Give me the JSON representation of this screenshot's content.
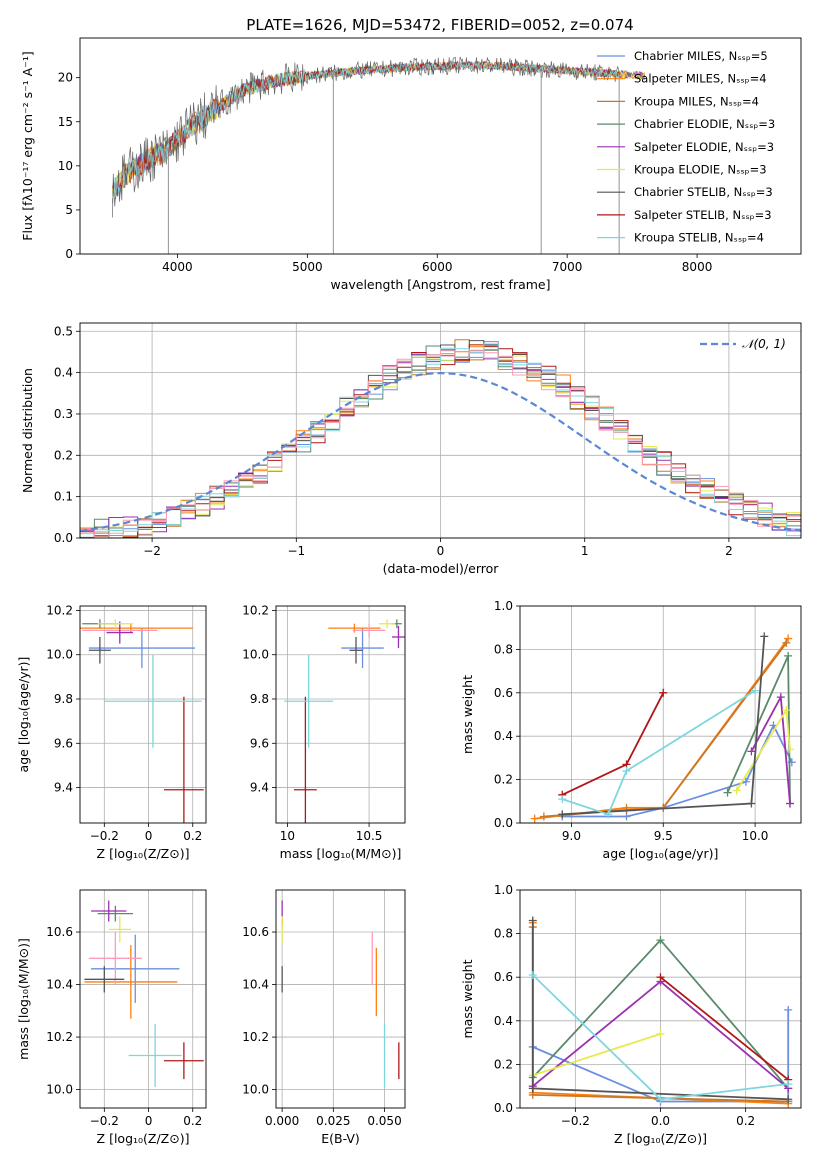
{
  "figure": {
    "title": "PLATE=1626, MJD=53472, FIBERID=0052, z=0.074"
  },
  "legend_series": [
    {
      "label": "Chabrier MILES, N$_{SSP}$=5",
      "color": "#6a8fe0"
    },
    {
      "label": "Salpeter MILES, N$_{SSP}$=4",
      "color": "#ff7f0e"
    },
    {
      "label": "Kroupa MILES, N$_{SSP}$=4",
      "color": "#c87828"
    },
    {
      "label": "Chabrier ELODIE, N$_{SSP}$=3",
      "color": "#5a8a6a"
    },
    {
      "label": "Salpeter ELODIE, N$_{SSP}$=3",
      "color": "#9b30b0"
    },
    {
      "label": "Kroupa ELODIE, N$_{SSP}$=3",
      "color": "#e6ea4a"
    },
    {
      "label": "Chabrier STELIB, N$_{SSP}$=3",
      "color": "#555555"
    },
    {
      "label": "Salpeter STELIB, N$_{SSP}$=3",
      "color": "#b01818"
    },
    {
      "label": "Kroupa STELIB, N$_{SSP}$=4",
      "color": "#7ed6df"
    }
  ],
  "display_legend": [
    "Chabrier MILES, Nₛₛₚ=5",
    "Salpeter MILES, Nₛₛₚ=4",
    "Kroupa MILES, Nₛₛₚ=4",
    "Chabrier ELODIE, Nₛₛₚ=3",
    "Salpeter ELODIE, Nₛₛₚ=3",
    "Kroupa ELODIE, Nₛₛₚ=3",
    "Chabrier STELIB, Nₛₛₚ=3",
    "Salpeter STELIB, Nₛₛₚ=3",
    "Kroupa STELIB, Nₛₛₚ=4"
  ],
  "chart_data": [
    {
      "id": "spectrum",
      "type": "line",
      "xlabel": "wavelength [Angstrom, rest frame]",
      "ylabel": "Flux [fλ10⁻¹⁷ erg cm⁻² s⁻¹ A⁻¹]",
      "xlim": [
        3250,
        8800
      ],
      "ylim": [
        0,
        24.5
      ],
      "xticks": [
        4000,
        5000,
        6000,
        7000,
        8000
      ],
      "yticks": [
        0,
        5,
        10,
        15,
        20
      ],
      "grid": false,
      "legend_position": "upper-right",
      "continuum": {
        "x": [
          3500,
          3600,
          3700,
          3800,
          3900,
          4000,
          4100,
          4200,
          4300,
          4400,
          4500,
          4600,
          4700,
          4800,
          5000,
          5200,
          5400,
          5600,
          5800,
          6000,
          6200,
          6400,
          6600,
          6800,
          7000,
          7200,
          7400,
          7600
        ],
        "y": [
          7.0,
          9.0,
          10.0,
          11.0,
          11.5,
          13.0,
          14.5,
          15.5,
          16.5,
          17.5,
          18.5,
          19.0,
          19.5,
          19.8,
          20.2,
          20.5,
          20.8,
          21.0,
          21.2,
          21.3,
          21.4,
          21.4,
          21.2,
          21.0,
          20.8,
          20.6,
          20.4,
          20.2
        ]
      },
      "dropouts": [
        {
          "x": 3930,
          "y": 0
        },
        {
          "x": 5200,
          "y": 0
        },
        {
          "x": 6800,
          "y": 0
        },
        {
          "x": 7400,
          "y": 0
        }
      ]
    },
    {
      "id": "residuals",
      "type": "histogram",
      "xlabel": "(data-model)/error",
      "ylabel": "Normed distribution",
      "xlim": [
        -2.5,
        2.5
      ],
      "ylim": [
        0,
        0.52
      ],
      "xticks": [
        -2,
        -1,
        0,
        1,
        2
      ],
      "yticks": [
        0.0,
        0.1,
        0.2,
        0.3,
        0.4,
        0.5
      ],
      "grid": true,
      "reference_curve": {
        "label": "𝒩(0, 1)",
        "mean": 0,
        "sigma": 1,
        "color": "#5b87d6"
      },
      "bin_width": 0.1,
      "peak_value": 0.5
    },
    {
      "id": "age_vs_Z",
      "type": "errorbar",
      "xlabel": "Z [log₁₀(Z/Z⊙)]",
      "ylabel": "age  [log₁₀(age/yr)]",
      "xlim": [
        -0.31,
        0.26
      ],
      "ylim": [
        9.24,
        10.22
      ],
      "xticks": [
        -0.2,
        0.0,
        0.2
      ],
      "yticks": [
        9.4,
        9.6,
        9.8,
        10.0,
        10.2
      ],
      "grid": true,
      "points": [
        {
          "x": -0.03,
          "y": 10.03,
          "xerr": 0.24,
          "yerr": 0.09,
          "color": "#6a8fe0"
        },
        {
          "x": -0.08,
          "y": 10.12,
          "xerr": 0.28,
          "yerr": 0.02,
          "color": "#ff7f0e"
        },
        {
          "x": -0.13,
          "y": 10.11,
          "xerr": 0.17,
          "yerr": 0.03,
          "color": "#ff9ab8"
        },
        {
          "x": -0.22,
          "y": 10.14,
          "xerr": 0.08,
          "yerr": 0.02,
          "color": "#5a8a6a"
        },
        {
          "x": -0.13,
          "y": 10.1,
          "xerr": 0.06,
          "yerr": 0.05,
          "color": "#9b30b0"
        },
        {
          "x": -0.15,
          "y": 10.14,
          "xerr": 0.08,
          "yerr": 0.02,
          "color": "#e6ea4a"
        },
        {
          "x": -0.22,
          "y": 10.02,
          "xerr": 0.05,
          "yerr": 0.06,
          "color": "#555555"
        },
        {
          "x": 0.16,
          "y": 9.39,
          "xerr": 0.09,
          "yerr": 0.42,
          "color": "#b01818"
        },
        {
          "x": 0.02,
          "y": 9.79,
          "xerr": 0.22,
          "yerr": 0.21,
          "color": "#7ed6df"
        }
      ]
    },
    {
      "id": "age_vs_mass",
      "type": "errorbar",
      "xlabel": "mass [log₁₀(M/M⊙)]",
      "ylabel": "",
      "xlim": [
        9.93,
        10.72
      ],
      "ylim": [
        9.24,
        10.22
      ],
      "xticks": [
        10.0,
        10.5
      ],
      "yticks": [
        9.4,
        9.6,
        9.8,
        10.0,
        10.2
      ],
      "grid": true,
      "points": [
        {
          "x": 10.46,
          "y": 10.03,
          "xerr": 0.13,
          "yerr": 0.09,
          "color": "#6a8fe0"
        },
        {
          "x": 10.41,
          "y": 10.12,
          "xerr": 0.16,
          "yerr": 0.02,
          "color": "#ff7f0e"
        },
        {
          "x": 10.5,
          "y": 10.11,
          "xerr": 0.1,
          "yerr": 0.03,
          "color": "#ff9ab8"
        },
        {
          "x": 10.67,
          "y": 10.14,
          "xerr": 0.03,
          "yerr": 0.02,
          "color": "#5a8a6a"
        },
        {
          "x": 10.68,
          "y": 10.08,
          "xerr": 0.04,
          "yerr": 0.05,
          "color": "#9b30b0"
        },
        {
          "x": 10.61,
          "y": 10.14,
          "xerr": 0.05,
          "yerr": 0.02,
          "color": "#e6ea4a"
        },
        {
          "x": 10.42,
          "y": 10.02,
          "xerr": 0.04,
          "yerr": 0.06,
          "color": "#555555"
        },
        {
          "x": 10.11,
          "y": 9.39,
          "xerr": 0.07,
          "yerr": 0.42,
          "color": "#b01818"
        },
        {
          "x": 10.13,
          "y": 9.79,
          "xerr": 0.15,
          "yerr": 0.21,
          "color": "#7ed6df"
        }
      ]
    },
    {
      "id": "weight_vs_age",
      "type": "line",
      "xlabel": "age  [log₁₀(age/yr)]",
      "ylabel": "mass weight",
      "xlim": [
        8.72,
        10.25
      ],
      "ylim": [
        0.0,
        1.0
      ],
      "xticks": [
        9.0,
        9.5,
        10.0
      ],
      "yticks": [
        0.0,
        0.2,
        0.4,
        0.6,
        0.8,
        1.0
      ],
      "grid": true,
      "series": [
        {
          "color": "#6a8fe0",
          "x": [
            8.95,
            9.3,
            9.5,
            9.95,
            10.1,
            10.2
          ],
          "y": [
            0.03,
            0.03,
            0.07,
            0.19,
            0.45,
            0.28
          ]
        },
        {
          "color": "#ff7f0e",
          "x": [
            8.8,
            9.3,
            9.5,
            10.18
          ],
          "y": [
            0.02,
            0.07,
            0.07,
            0.85
          ]
        },
        {
          "color": "#c87828",
          "x": [
            8.85,
            9.3,
            9.5,
            10.17
          ],
          "y": [
            0.03,
            0.06,
            0.07,
            0.83
          ]
        },
        {
          "color": "#5a8a6a",
          "x": [
            9.85,
            10.18,
            10.19
          ],
          "y": [
            0.14,
            0.77,
            0.09
          ]
        },
        {
          "color": "#9b30b0",
          "x": [
            9.98,
            10.14,
            10.19
          ],
          "y": [
            0.33,
            0.58,
            0.09
          ]
        },
        {
          "color": "#e6ea4a",
          "x": [
            9.9,
            10.17,
            10.19
          ],
          "y": [
            0.15,
            0.52,
            0.34
          ]
        },
        {
          "color": "#555555",
          "x": [
            8.95,
            9.98,
            10.05
          ],
          "y": [
            0.04,
            0.09,
            0.86
          ]
        },
        {
          "color": "#b01818",
          "x": [
            8.95,
            9.3,
            9.5
          ],
          "y": [
            0.13,
            0.27,
            0.6
          ]
        },
        {
          "color": "#7ed6df",
          "x": [
            8.95,
            9.2,
            9.3,
            10.0
          ],
          "y": [
            0.11,
            0.04,
            0.24,
            0.61
          ]
        }
      ]
    },
    {
      "id": "mass_vs_Z",
      "type": "errorbar",
      "xlabel": "Z [log₁₀(Z/Z⊙)]",
      "ylabel": "mass [log₁₀(M/M⊙)]",
      "xlim": [
        -0.31,
        0.26
      ],
      "ylim": [
        9.93,
        10.76
      ],
      "xticks": [
        -0.2,
        0.0,
        0.2
      ],
      "yticks": [
        10.0,
        10.2,
        10.4,
        10.6
      ],
      "grid": true,
      "points": [
        {
          "x": -0.06,
          "y": 10.46,
          "xerr": 0.2,
          "yerr": 0.13,
          "color": "#6a8fe0"
        },
        {
          "x": -0.08,
          "y": 10.41,
          "xerr": 0.21,
          "yerr": 0.14,
          "color": "#ff7f0e"
        },
        {
          "x": -0.15,
          "y": 10.5,
          "xerr": 0.12,
          "yerr": 0.1,
          "color": "#ff9ab8"
        },
        {
          "x": -0.15,
          "y": 10.67,
          "xerr": 0.08,
          "yerr": 0.03,
          "color": "#5a8a6a"
        },
        {
          "x": -0.18,
          "y": 10.68,
          "xerr": 0.08,
          "yerr": 0.04,
          "color": "#9b30b0"
        },
        {
          "x": -0.13,
          "y": 10.61,
          "xerr": 0.05,
          "yerr": 0.05,
          "color": "#e6ea4a"
        },
        {
          "x": -0.2,
          "y": 10.42,
          "xerr": 0.09,
          "yerr": 0.05,
          "color": "#555555"
        },
        {
          "x": 0.16,
          "y": 10.11,
          "xerr": 0.09,
          "yerr": 0.07,
          "color": "#b01818"
        },
        {
          "x": 0.03,
          "y": 10.13,
          "xerr": 0.12,
          "yerr": 0.12,
          "color": "#7ed6df"
        }
      ]
    },
    {
      "id": "mass_vs_ebv",
      "type": "errorbar",
      "xlabel": "E(B-V)",
      "ylabel": "",
      "xlim": [
        -0.003,
        0.06
      ],
      "ylim": [
        9.93,
        10.76
      ],
      "xticks": [
        0.0,
        0.025,
        0.05
      ],
      "xticklabels": [
        "0.000",
        "0.025",
        "0.050"
      ],
      "yticks": [
        10.0,
        10.2,
        10.4,
        10.6
      ],
      "grid": true,
      "points": [
        {
          "x": 0.0,
          "y": 10.67,
          "xerr": 0.0,
          "yerr": 0.05,
          "color": "#9b30b0"
        },
        {
          "x": 0.0,
          "y": 10.61,
          "xerr": 0.0,
          "yerr": 0.05,
          "color": "#e6ea4a"
        },
        {
          "x": 0.0,
          "y": 10.42,
          "xerr": 0.0,
          "yerr": 0.05,
          "color": "#555555"
        },
        {
          "x": 0.044,
          "y": 10.5,
          "xerr": 0.0,
          "yerr": 0.1,
          "color": "#ff9ab8"
        },
        {
          "x": 0.046,
          "y": 10.41,
          "xerr": 0.0,
          "yerr": 0.13,
          "color": "#ff7f0e"
        },
        {
          "x": 0.05,
          "y": 10.13,
          "xerr": 0.0,
          "yerr": 0.12,
          "color": "#7ed6df"
        },
        {
          "x": 0.057,
          "y": 10.11,
          "xerr": 0.0,
          "yerr": 0.07,
          "color": "#b01818"
        }
      ]
    },
    {
      "id": "weight_vs_Z",
      "type": "line",
      "xlabel": "Z [log₁₀(Z/Z⊙)]",
      "ylabel": "mass weight",
      "xlim": [
        -0.33,
        0.33
      ],
      "ylim": [
        0.0,
        1.0
      ],
      "xticks": [
        -0.2,
        0.0,
        0.2
      ],
      "yticks": [
        0.0,
        0.2,
        0.4,
        0.6,
        0.8,
        1.0
      ],
      "grid": true,
      "series": [
        {
          "color": "#6a8fe0",
          "x": [
            -0.3,
            0.0,
            0.3,
            0.3
          ],
          "y": [
            0.28,
            0.03,
            0.03,
            0.45
          ]
        },
        {
          "color": "#ff7f0e",
          "x": [
            -0.3,
            -0.3,
            0.3
          ],
          "y": [
            0.85,
            0.07,
            0.02
          ]
        },
        {
          "color": "#c87828",
          "x": [
            -0.3,
            -0.3,
            0.3
          ],
          "y": [
            0.83,
            0.06,
            0.03
          ]
        },
        {
          "color": "#5a8a6a",
          "x": [
            -0.3,
            0.0,
            0.3
          ],
          "y": [
            0.14,
            0.77,
            0.09
          ]
        },
        {
          "color": "#9b30b0",
          "x": [
            -0.3,
            0.0,
            0.3
          ],
          "y": [
            0.1,
            0.58,
            0.09
          ]
        },
        {
          "color": "#e6ea4a",
          "x": [
            -0.3,
            0.0
          ],
          "y": [
            0.15,
            0.34
          ]
        },
        {
          "color": "#555555",
          "x": [
            -0.3,
            -0.3,
            0.3
          ],
          "y": [
            0.86,
            0.09,
            0.04
          ]
        },
        {
          "color": "#b01818",
          "x": [
            0.0,
            0.3
          ],
          "y": [
            0.6,
            0.13
          ]
        },
        {
          "color": "#7ed6df",
          "x": [
            -0.3,
            0.0,
            0.3
          ],
          "y": [
            0.61,
            0.04,
            0.11
          ]
        }
      ]
    }
  ]
}
